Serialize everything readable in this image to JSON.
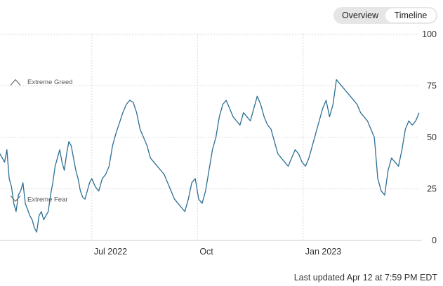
{
  "toggle": {
    "tabs": [
      {
        "label": "Overview",
        "active": false
      },
      {
        "label": "Timeline",
        "active": true
      }
    ]
  },
  "footer": {
    "updated": "Last updated Apr 12 at 7:59 PM EDT"
  },
  "colors": {
    "line": "#2b6f93",
    "grid": "#d9d9d9",
    "annotation": "#555555",
    "axis": "#cccccc"
  },
  "icons": {
    "greed": "triangle-up-outline-icon",
    "fear": "triangle-down-outline-icon"
  },
  "chart_data": {
    "type": "line",
    "title": "",
    "xlabel": "",
    "ylabel": "",
    "ylim": [
      0,
      100
    ],
    "yticks": [
      0,
      25,
      50,
      75,
      100
    ],
    "xlim": [
      "2022-04-12",
      "2023-04-12"
    ],
    "xticks": [
      {
        "label": "Jul 2022",
        "date": "2022-07-01"
      },
      {
        "label": "Oct",
        "date": "2022-10-01"
      },
      {
        "label": "Jan 2023",
        "date": "2023-01-01"
      }
    ],
    "grid": {
      "horizontal": true,
      "vertical": true
    },
    "annotations": [
      {
        "text": "Extreme Greed",
        "y": 77
      },
      {
        "text": "Extreme Fear",
        "y": 20
      }
    ],
    "series": [
      {
        "x": [
          "2022-04-12",
          "2022-04-14",
          "2022-04-16",
          "2022-04-18",
          "2022-04-20",
          "2022-04-22",
          "2022-04-24",
          "2022-04-26",
          "2022-04-28",
          "2022-04-30",
          "2022-05-02",
          "2022-05-04",
          "2022-05-06",
          "2022-05-08",
          "2022-05-10",
          "2022-05-12",
          "2022-05-14",
          "2022-05-16",
          "2022-05-18",
          "2022-05-20",
          "2022-05-22",
          "2022-05-24",
          "2022-05-26",
          "2022-05-28",
          "2022-05-30",
          "2022-06-01",
          "2022-06-03",
          "2022-06-05",
          "2022-06-07",
          "2022-06-09",
          "2022-06-11",
          "2022-06-13",
          "2022-06-15",
          "2022-06-17",
          "2022-06-19",
          "2022-06-21",
          "2022-06-23",
          "2022-06-25",
          "2022-06-27",
          "2022-06-29",
          "2022-07-01",
          "2022-07-04",
          "2022-07-07",
          "2022-07-10",
          "2022-07-13",
          "2022-07-16",
          "2022-07-19",
          "2022-07-22",
          "2022-07-25",
          "2022-07-28",
          "2022-07-31",
          "2022-08-03",
          "2022-08-06",
          "2022-08-09",
          "2022-08-12",
          "2022-08-15",
          "2022-08-18",
          "2022-08-21",
          "2022-08-24",
          "2022-08-27",
          "2022-08-30",
          "2022-09-02",
          "2022-09-05",
          "2022-09-08",
          "2022-09-11",
          "2022-09-14",
          "2022-09-17",
          "2022-09-20",
          "2022-09-23",
          "2022-09-26",
          "2022-09-29",
          "2022-10-02",
          "2022-10-05",
          "2022-10-08",
          "2022-10-11",
          "2022-10-14",
          "2022-10-17",
          "2022-10-20",
          "2022-10-23",
          "2022-10-26",
          "2022-10-29",
          "2022-11-01",
          "2022-11-04",
          "2022-11-07",
          "2022-11-10",
          "2022-11-13",
          "2022-11-16",
          "2022-11-19",
          "2022-11-22",
          "2022-11-25",
          "2022-11-28",
          "2022-12-01",
          "2022-12-04",
          "2022-12-07",
          "2022-12-10",
          "2022-12-13",
          "2022-12-16",
          "2022-12-19",
          "2022-12-22",
          "2022-12-25",
          "2022-12-28",
          "2022-12-31",
          "2023-01-03",
          "2023-01-06",
          "2023-01-09",
          "2023-01-12",
          "2023-01-15",
          "2023-01-18",
          "2023-01-21",
          "2023-01-24",
          "2023-01-27",
          "2023-01-30",
          "2023-02-02",
          "2023-02-05",
          "2023-02-08",
          "2023-02-11",
          "2023-02-14",
          "2023-02-17",
          "2023-02-20",
          "2023-02-23",
          "2023-02-26",
          "2023-03-01",
          "2023-03-04",
          "2023-03-07",
          "2023-03-10",
          "2023-03-13",
          "2023-03-16",
          "2023-03-19",
          "2023-03-22",
          "2023-03-25",
          "2023-03-28",
          "2023-03-31",
          "2023-04-03",
          "2023-04-06",
          "2023-04-09",
          "2023-04-12"
        ],
        "y": [
          42,
          40,
          38,
          44,
          30,
          26,
          18,
          14,
          22,
          24,
          28,
          18,
          15,
          12,
          10,
          6,
          4,
          12,
          14,
          10,
          12,
          14,
          22,
          28,
          36,
          40,
          44,
          38,
          34,
          42,
          48,
          46,
          40,
          34,
          30,
          24,
          21,
          20,
          24,
          28,
          30,
          26,
          24,
          30,
          32,
          36,
          46,
          52,
          57,
          62,
          66,
          68,
          67,
          62,
          54,
          50,
          46,
          40,
          38,
          36,
          34,
          32,
          28,
          24,
          20,
          18,
          16,
          14,
          20,
          28,
          30,
          20,
          18,
          24,
          34,
          44,
          50,
          60,
          66,
          68,
          64,
          60,
          58,
          56,
          62,
          60,
          58,
          64,
          70,
          66,
          60,
          56,
          54,
          48,
          42,
          40,
          38,
          36,
          40,
          44,
          42,
          38,
          36,
          40,
          46,
          52,
          58,
          64,
          68,
          60,
          66,
          78,
          76,
          74,
          72,
          70,
          68,
          66,
          62,
          60,
          58,
          54,
          50,
          30,
          24,
          22,
          34,
          40,
          38,
          36,
          44,
          54,
          58,
          56,
          58,
          62
        ]
      }
    ]
  }
}
